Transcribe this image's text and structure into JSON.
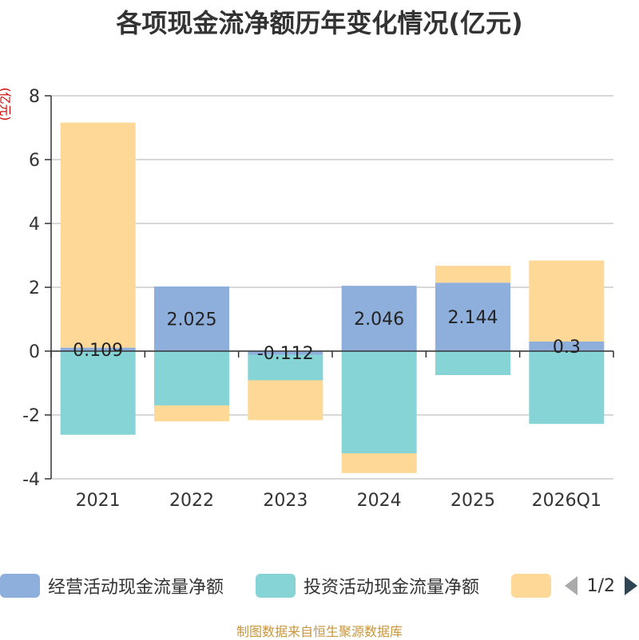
{
  "chart_data": {
    "type": "bar",
    "stacked": true,
    "title": "各项现金流净额历年变化情况(亿元)",
    "ylabel": "(亿元)",
    "categories": [
      "2021",
      "2022",
      "2023",
      "2024",
      "2025",
      "2026Q1"
    ],
    "ylim": [
      -4,
      8
    ],
    "yticks": [
      -4,
      -2,
      0,
      2,
      4,
      6,
      8
    ],
    "series": [
      {
        "name": "经营活动现金流量净额",
        "color": "#8eaedb",
        "values": [
          0.109,
          2.025,
          -0.112,
          2.046,
          2.144,
          0.3
        ],
        "labels": [
          "0.109",
          "2.025",
          "-0.112",
          "2.046",
          "2.144",
          "0.3"
        ]
      },
      {
        "name": "投资活动现金流量净额",
        "color": "#87d4d6",
        "values": [
          -2.62,
          -1.7,
          -0.8,
          -3.2,
          -0.75,
          -2.28
        ]
      },
      {
        "name": "",
        "color": "#fed896",
        "values": [
          7.05,
          -0.5,
          -1.25,
          -0.62,
          0.53,
          2.54
        ]
      }
    ]
  },
  "legend": {
    "items": [
      {
        "label": "经营活动现金流量净额",
        "color": "#8eaedb"
      },
      {
        "label": "投资活动现金流量净额",
        "color": "#87d4d6"
      },
      {
        "label": "",
        "color": "#fed896"
      }
    ],
    "page_indicator": "1/2"
  },
  "footer": "制图数据来自恒生聚源数据库"
}
